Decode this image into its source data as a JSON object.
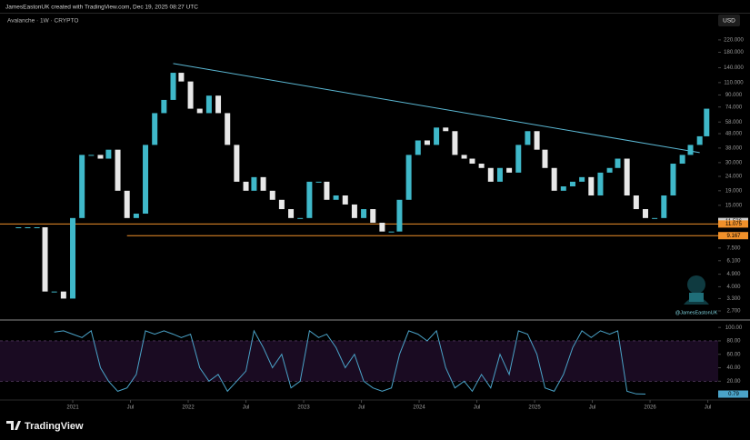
{
  "header": "JamesEastonUK created with TradingView.com, Dec 19, 2025 08:27 UTC",
  "footer_brand": "TradingView",
  "chart_data": {
    "type": "candlestick",
    "title": "Avalanche · 1W · CRYPTO",
    "currency": "USD",
    "watermark": "@JamesEastonUK",
    "log_scale": true,
    "grid": false,
    "up_color": "#3fb8c9",
    "down_color": "#e8e8e8",
    "xlim": [
      2020.37,
      2026.59
    ],
    "ylim": [
      2.33,
      337
    ],
    "xticks": [
      {
        "value": 2021,
        "label": "2021"
      },
      {
        "value": 2021.5,
        "label": "Jul"
      },
      {
        "value": 2022,
        "label": "2022"
      },
      {
        "value": 2022.5,
        "label": "Jul"
      },
      {
        "value": 2023,
        "label": "2023"
      },
      {
        "value": 2023.5,
        "label": "Jul"
      },
      {
        "value": 2024,
        "label": "2024"
      },
      {
        "value": 2024.5,
        "label": "Jul"
      },
      {
        "value": 2025,
        "label": "2025"
      },
      {
        "value": 2025.5,
        "label": "Jul"
      },
      {
        "value": 2026,
        "label": "2026"
      },
      {
        "value": 2026.5,
        "label": "Jul"
      }
    ],
    "yticks": [
      {
        "value": 2.7,
        "label": "2.700"
      },
      {
        "value": 3.3,
        "label": "3.300"
      },
      {
        "value": 4,
        "label": "4.000"
      },
      {
        "value": 4.9,
        "label": "4.900"
      },
      {
        "value": 6.1,
        "label": "6.100"
      },
      {
        "value": 7.5,
        "label": "7.500"
      },
      {
        "value": 15,
        "label": "15.000"
      },
      {
        "value": 19,
        "label": "19.000"
      },
      {
        "value": 24,
        "label": "24.000"
      },
      {
        "value": 30,
        "label": "30.000"
      },
      {
        "value": 38,
        "label": "38.000"
      },
      {
        "value": 48,
        "label": "48.000"
      },
      {
        "value": 58,
        "label": "58.000"
      },
      {
        "value": 74,
        "label": "74.000"
      },
      {
        "value": 90,
        "label": "90.000"
      },
      {
        "value": 110,
        "label": "110.000"
      },
      {
        "value": 140,
        "label": "140.000"
      },
      {
        "value": 180,
        "label": "180.000"
      },
      {
        "value": 220,
        "label": "220.000"
      }
    ],
    "x": [
      2020.53,
      2020.61,
      2020.69,
      2020.76,
      2020.84,
      2020.92,
      2021.0,
      2021.08,
      2021.16,
      2021.24,
      2021.31,
      2021.39,
      2021.47,
      2021.55,
      2021.63,
      2021.71,
      2021.79,
      2021.87,
      2021.94,
      2022.02,
      2022.1,
      2022.18,
      2022.26,
      2022.34,
      2022.42,
      2022.5,
      2022.57,
      2022.65,
      2022.73,
      2022.81,
      2022.89,
      2022.97,
      2023.05,
      2023.13,
      2023.2,
      2023.28,
      2023.36,
      2023.44,
      2023.52,
      2023.6,
      2023.68,
      2023.76,
      2023.83,
      2023.91,
      2023.99,
      2024.07,
      2024.15,
      2024.23,
      2024.31,
      2024.39,
      2024.46,
      2024.54,
      2024.62,
      2024.7,
      2024.78,
      2024.86,
      2024.94,
      2025.02,
      2025.09,
      2025.17,
      2025.25,
      2025.33,
      2025.41,
      2025.49,
      2025.57,
      2025.65,
      2025.72,
      2025.8,
      2025.88,
      2025.96,
      2026.04,
      2026.12,
      2026.2,
      2026.28,
      2026.35,
      2026.43,
      2026.49
    ],
    "values": [
      10.5,
      10.5,
      10.5,
      3.7,
      3.7,
      3.3,
      12.2,
      34,
      34,
      32,
      37,
      19,
      12.2,
      13.1,
      40,
      67,
      83,
      129,
      112,
      72,
      67,
      89,
      67,
      40,
      22,
      19,
      23.7,
      19,
      16.4,
      14.1,
      12.2,
      12.2,
      22,
      22,
      16.4,
      17.6,
      15.2,
      12.2,
      14.1,
      11.3,
      9.8,
      9.8,
      16.4,
      34,
      43,
      40,
      53,
      50,
      34,
      32,
      29.5,
      27.5,
      22,
      27.5,
      25.5,
      40,
      50,
      37,
      27.5,
      19,
      20.4,
      22,
      23.7,
      17.6,
      25.5,
      27.5,
      32,
      17.6,
      14.1,
      12.2,
      12.2,
      17.6,
      29.5,
      34,
      40,
      46,
      72
    ],
    "trendline": {
      "x": [
        2021.87,
        2026.43
      ],
      "values": [
        150,
        35.3
      ],
      "color": "#5bb8d4"
    },
    "levels": [
      {
        "value": 11.075,
        "from": 2020.37,
        "color": "#f0902a"
      },
      {
        "value": 9.167,
        "from": 2021.47,
        "color": "#f0902a"
      }
    ],
    "price_labels": [
      {
        "value": 11.536,
        "color": "#d0d0d0"
      },
      {
        "value": 11.075,
        "color": "#f0902a"
      },
      {
        "value": 9.167,
        "color": "#f0902a"
      }
    ],
    "oscillator": {
      "color": "#4aa3c8",
      "band": [
        20,
        80
      ],
      "ylim": [
        -8,
        107
      ],
      "yticks": [
        {
          "value": 20,
          "label": "20.00"
        },
        {
          "value": 40,
          "label": "40.00"
        },
        {
          "value": 60,
          "label": "60.00"
        },
        {
          "value": 80,
          "label": "80.00"
        },
        {
          "value": 100,
          "label": "100.00"
        }
      ],
      "values": [
        null,
        null,
        null,
        null,
        93,
        95,
        90,
        85,
        95,
        40,
        20,
        5,
        10,
        30,
        95,
        90,
        95,
        90,
        85,
        90,
        40,
        20,
        30,
        5,
        20,
        35,
        95,
        70,
        40,
        60,
        10,
        20,
        95,
        85,
        90,
        70,
        40,
        60,
        20,
        10,
        5,
        10,
        60,
        95,
        90,
        80,
        95,
        40,
        10,
        20,
        5,
        30,
        10,
        60,
        30,
        95,
        90,
        60,
        10,
        5,
        30,
        70,
        95,
        85,
        95,
        90,
        95,
        5,
        1,
        0.79,
        null,
        null,
        null,
        null,
        null,
        null,
        null
      ]
    }
  }
}
